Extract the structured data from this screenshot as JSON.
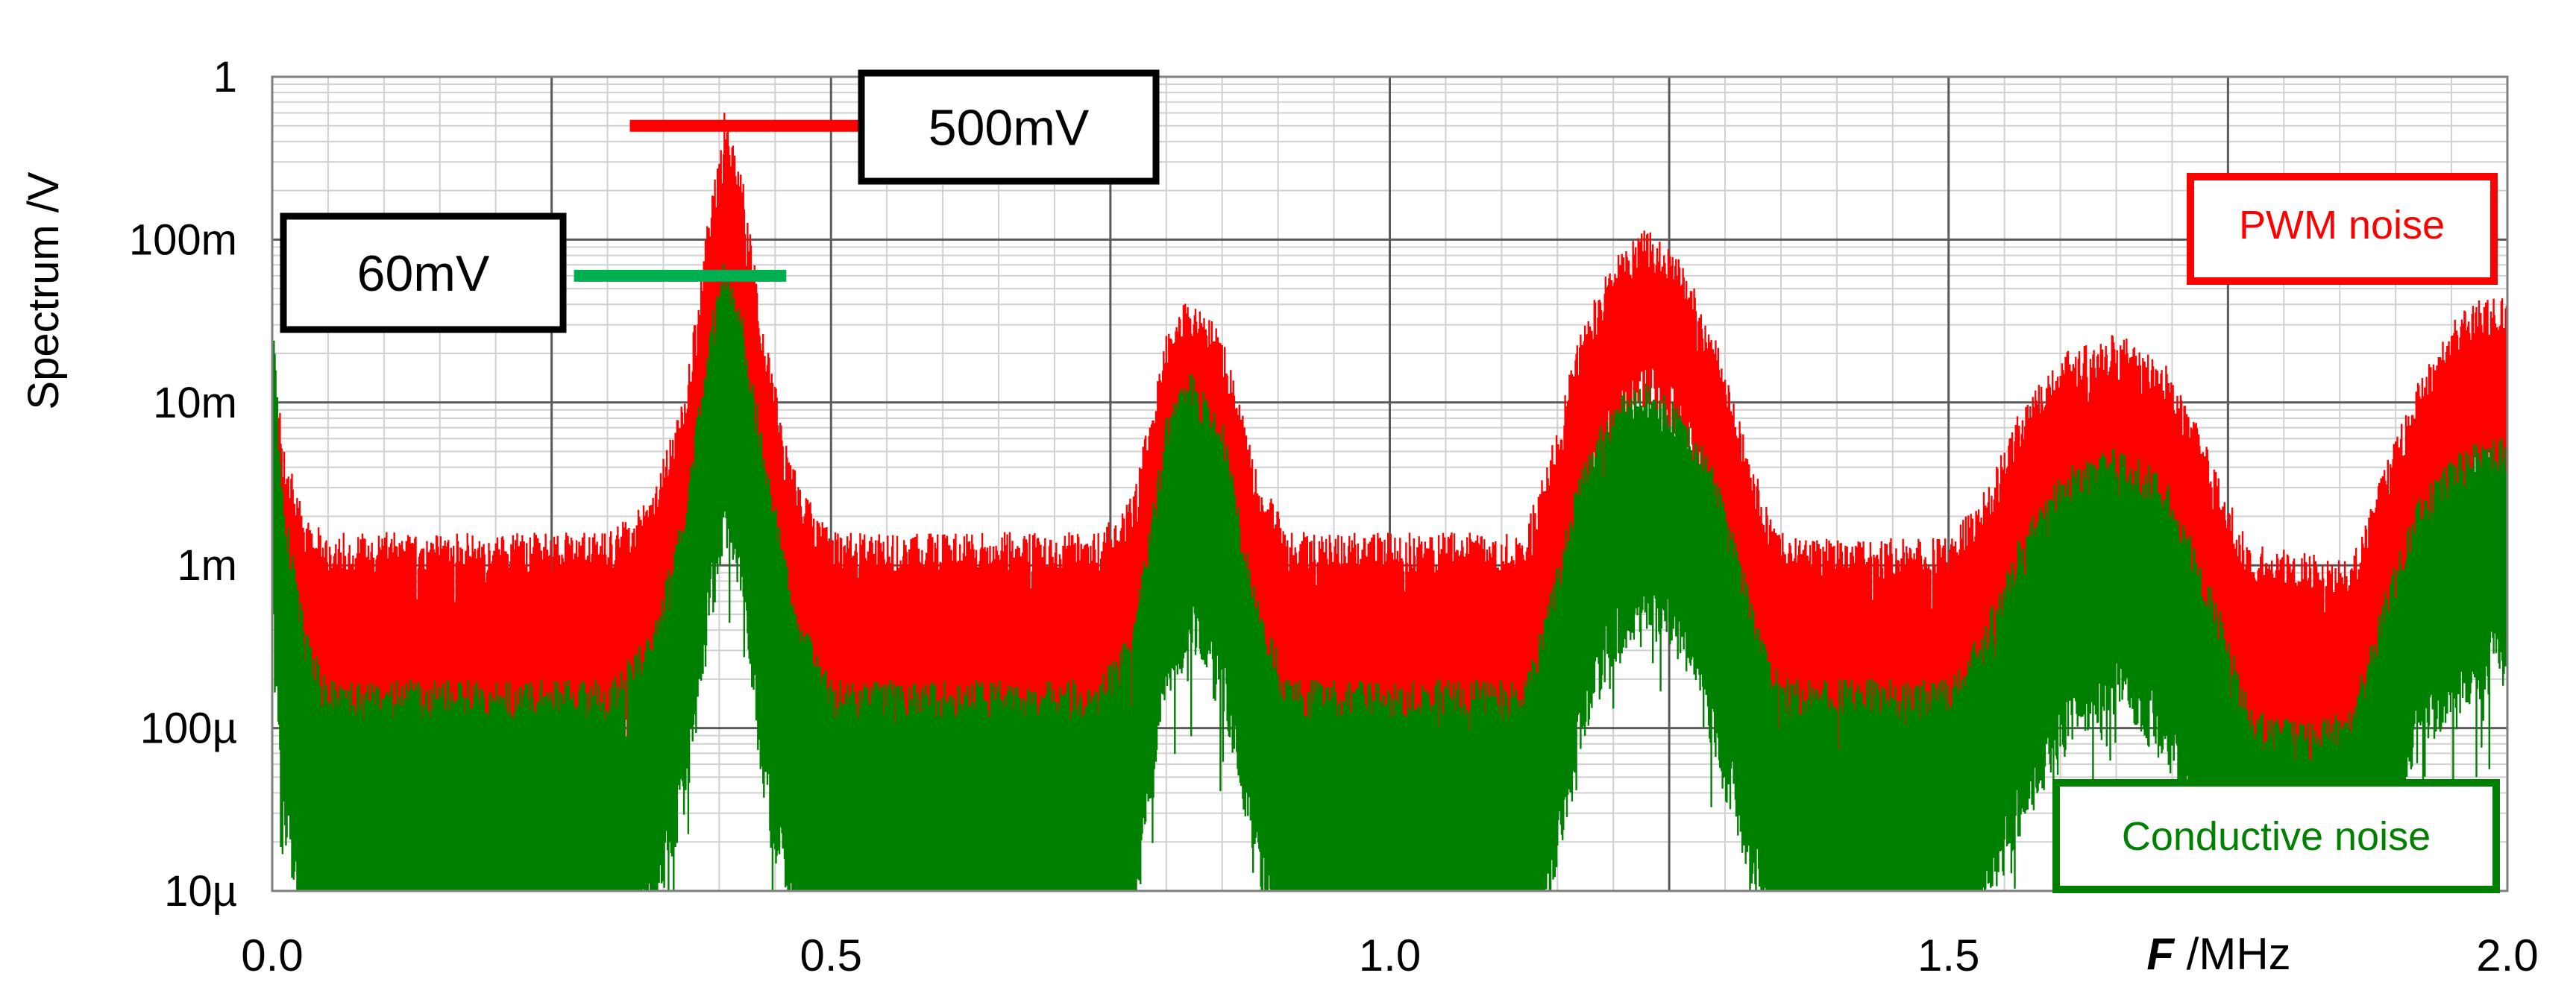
{
  "chart_data": {
    "type": "line",
    "title": "",
    "ylabel": "Spectrum /V",
    "xlabel_symbol": "F",
    "xlabel_unit": " /MHz",
    "xlim": [
      0.0,
      2.0
    ],
    "ylim": [
      1e-05,
      1
    ],
    "yscale": "log",
    "grid": true,
    "x_ticks": [
      {
        "value": 0.0,
        "label": "0.0"
      },
      {
        "value": 0.5,
        "label": "0.5"
      },
      {
        "value": 1.0,
        "label": "1.0"
      },
      {
        "value": 1.5,
        "label": "1.5"
      },
      {
        "value": 2.0,
        "label": "2.0"
      }
    ],
    "y_ticks": [
      {
        "value": 1,
        "label": "1"
      },
      {
        "value": 0.1,
        "label": "100m"
      },
      {
        "value": 0.01,
        "label": "10m"
      },
      {
        "value": 0.001,
        "label": "1m"
      },
      {
        "value": 0.0001,
        "label": "100µ"
      },
      {
        "value": 1e-05,
        "label": "10µ"
      }
    ],
    "series": [
      {
        "name": "PWM noise",
        "color": "#ff0000",
        "envelope": {
          "x": [
            0.0,
            0.01,
            0.03,
            0.05,
            0.3,
            0.34,
            0.37,
            0.39,
            0.405,
            0.42,
            0.44,
            0.47,
            0.5,
            0.74,
            0.77,
            0.8,
            0.82,
            0.85,
            0.88,
            0.91,
            1.12,
            1.14,
            1.17,
            1.2,
            1.23,
            1.26,
            1.29,
            1.32,
            1.34,
            1.36,
            1.5,
            1.53,
            1.56,
            1.6,
            1.65,
            1.69,
            1.72,
            1.75,
            1.77,
            1.82,
            1.86,
            1.89,
            1.92,
            1.96,
            2.0
          ],
          "hi": [
            0.02,
            0.004,
            0.0015,
            0.0012,
            0.0012,
            0.002,
            0.01,
            0.1,
            0.5,
            0.2,
            0.02,
            0.0025,
            0.0012,
            0.0012,
            0.002,
            0.02,
            0.035,
            0.02,
            0.003,
            0.0012,
            0.0012,
            0.003,
            0.02,
            0.06,
            0.09,
            0.06,
            0.02,
            0.004,
            0.0015,
            0.0011,
            0.0011,
            0.002,
            0.006,
            0.015,
            0.02,
            0.015,
            0.006,
            0.002,
            0.001,
            0.0009,
            0.0008,
            0.003,
            0.01,
            0.03,
            0.035
          ],
          "lo": [
            0.0008,
            0.00015,
            8e-05,
            7e-05,
            7e-05,
            0.0001,
            0.0005,
            0.005,
            0.03,
            0.01,
            0.0008,
            0.0001,
            7e-05,
            7e-05,
            0.0001,
            0.002,
            0.004,
            0.002,
            0.0002,
            7e-05,
            7e-05,
            0.0002,
            0.002,
            0.008,
            0.015,
            0.008,
            0.002,
            0.0003,
            0.0001,
            7e-05,
            7e-05,
            0.0001,
            0.0004,
            0.0012,
            0.002,
            0.0012,
            0.0004,
            0.00012,
            6e-05,
            5e-05,
            5e-05,
            0.0002,
            0.001,
            0.003,
            0.004
          ]
        }
      },
      {
        "name": "Conductive noise",
        "color": "#008000",
        "envelope": {
          "x": [
            0.0,
            0.01,
            0.03,
            0.05,
            0.3,
            0.34,
            0.37,
            0.39,
            0.405,
            0.42,
            0.44,
            0.47,
            0.5,
            0.74,
            0.77,
            0.8,
            0.82,
            0.85,
            0.88,
            0.91,
            1.12,
            1.14,
            1.17,
            1.2,
            1.23,
            1.26,
            1.29,
            1.32,
            1.34,
            1.36,
            1.5,
            1.53,
            1.56,
            1.6,
            1.65,
            1.69,
            1.72,
            1.75,
            1.77,
            1.82,
            1.86,
            1.89,
            1.92,
            1.96,
            2.0
          ],
          "hi": [
            0.03,
            0.002,
            0.0003,
            0.00015,
            0.00015,
            0.0003,
            0.002,
            0.02,
            0.06,
            0.03,
            0.004,
            0.0004,
            0.00015,
            0.00015,
            0.0003,
            0.006,
            0.012,
            0.006,
            0.0005,
            0.00015,
            0.00015,
            0.0004,
            0.003,
            0.008,
            0.01,
            0.007,
            0.003,
            0.0006,
            0.0002,
            0.00015,
            0.00015,
            0.0003,
            0.001,
            0.003,
            0.004,
            0.003,
            0.001,
            0.0003,
            0.0001,
            8e-05,
            0.0001,
            0.0005,
            0.002,
            0.004,
            0.005
          ],
          "lo": [
            0.0005,
            3e-05,
            8e-06,
            5e-06,
            5e-06,
            8e-06,
            5e-05,
            0.0005,
            0.002,
            0.001,
            5e-05,
            8e-06,
            5e-06,
            5e-06,
            8e-06,
            0.0002,
            0.0004,
            0.0002,
            2e-05,
            5e-06,
            5e-06,
            1e-05,
            0.0001,
            0.0004,
            0.0006,
            0.0004,
            0.0001,
            2e-05,
            6e-06,
            5e-06,
            5e-06,
            8e-06,
            3e-05,
            0.0001,
            0.0002,
            0.0001,
            3e-05,
            1e-05,
            5e-06,
            5e-06,
            5e-06,
            2e-05,
            0.0001,
            0.0002,
            0.0003
          ]
        }
      }
    ],
    "annotations": [
      {
        "text": "500mV",
        "value": 0.5,
        "x_range": [
          0.32,
          0.54
        ],
        "color": "#ff0000"
      },
      {
        "text": "60mV",
        "value": 0.06,
        "x_range": [
          0.27,
          0.46
        ],
        "color": "#00b050"
      }
    ],
    "legend": [
      {
        "text": "PWM noise",
        "color": "#ff0000",
        "placement": "right-top"
      },
      {
        "text": "Conductive noise",
        "color": "#008000",
        "placement": "bottom-right"
      }
    ]
  }
}
